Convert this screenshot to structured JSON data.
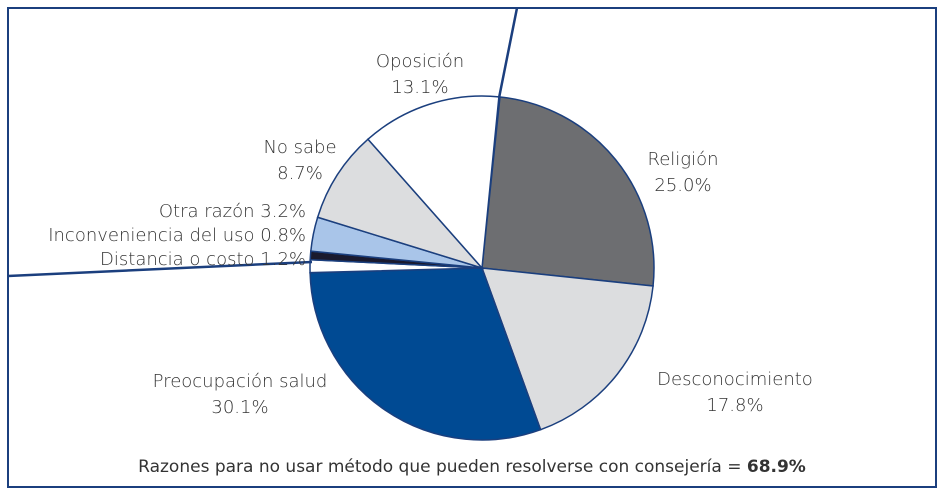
{
  "chart_data": {
    "type": "pie",
    "categories": [
      "Religión",
      "Desconocimiento",
      "Preocupación salud",
      "Distancia o costo",
      "Inconveniencia del uso",
      "Otra razón",
      "No sabe",
      "Oposición"
    ],
    "values": [
      25.0,
      17.8,
      30.1,
      1.2,
      0.8,
      3.2,
      8.7,
      13.1
    ],
    "value_labels": [
      "25.0%",
      "17.8%",
      "30.1%",
      "1.2%",
      "0.8%",
      "3.2%",
      "8.7%",
      "13.1%"
    ],
    "colors": [
      "#6d6e71",
      "#dcdddf",
      "#004a93",
      "#ffffff",
      "#1a1a2e",
      "#a9c5e9",
      "#dcdddf",
      "#ffffff"
    ],
    "annotation": {
      "text": "Razones para no usar método que pueden resolverse con consejería =",
      "value": "68.9%"
    }
  }
}
